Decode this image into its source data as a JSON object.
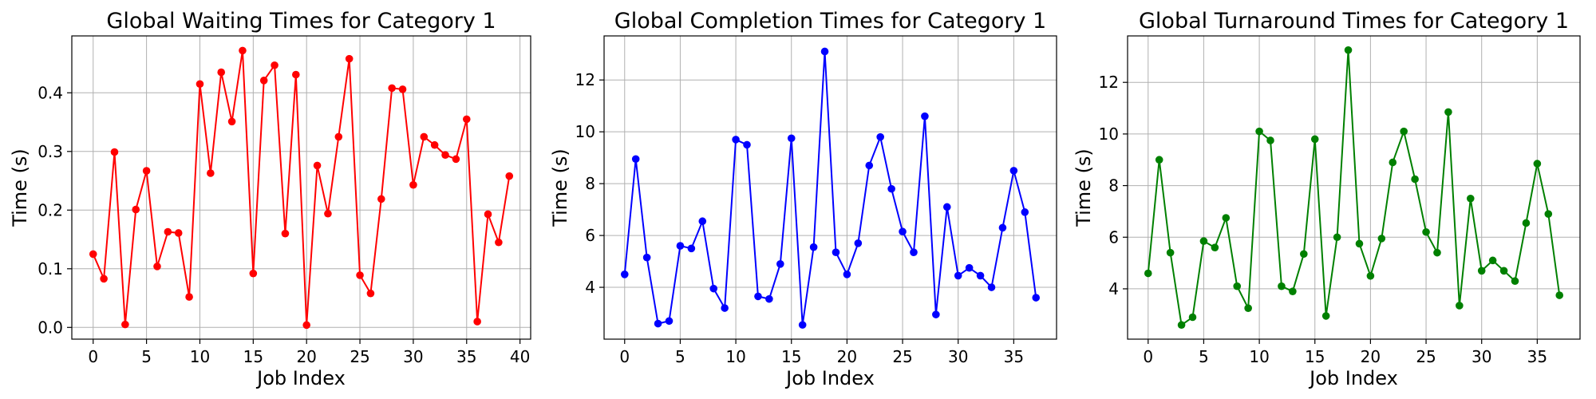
{
  "chart_data": [
    {
      "type": "line",
      "title": "Global Waiting Times for Category 1",
      "xlabel": "Job Index",
      "ylabel": "Time (s)",
      "color": "#ff0000",
      "marker": "circle",
      "grid": true,
      "xlim": [
        -2,
        41
      ],
      "ylim": [
        -0.02,
        0.497
      ],
      "xticks": [
        0,
        5,
        10,
        15,
        20,
        25,
        30,
        35,
        40
      ],
      "yticks": [
        0.0,
        0.1,
        0.2,
        0.3,
        0.4
      ],
      "yticklabels": [
        "0.0",
        "0.1",
        "0.2",
        "0.3",
        "0.4"
      ],
      "series": [
        {
          "values": [
            0.125,
            0.083,
            0.299,
            0.005,
            0.201,
            0.267,
            0.104,
            0.163,
            0.161,
            0.052,
            0.415,
            0.263,
            0.435,
            0.351,
            0.472,
            0.092,
            0.421,
            0.447,
            0.16,
            0.431,
            0.004,
            0.276,
            0.194,
            0.325,
            0.458,
            0.089,
            0.058,
            0.219,
            0.408,
            0.406,
            0.243,
            0.325,
            0.311,
            0.294,
            0.287,
            0.355,
            0.01,
            0.193,
            0.145,
            0.258
          ]
        }
      ]
    },
    {
      "type": "line",
      "title": "Global Completion Times for Category 1",
      "xlabel": "Job Index",
      "ylabel": "Time (s)",
      "color": "#0000ff",
      "marker": "circle",
      "grid": true,
      "xlim": [
        -1.85,
        38.85
      ],
      "ylim": [
        2.0,
        13.7
      ],
      "xticks": [
        0,
        5,
        10,
        15,
        20,
        25,
        30,
        35
      ],
      "yticks": [
        4,
        6,
        8,
        10,
        12
      ],
      "yticklabels": [
        "4",
        "6",
        "8",
        "10",
        "12"
      ],
      "series": [
        {
          "values": [
            4.5,
            8.95,
            5.15,
            2.6,
            2.7,
            5.6,
            5.5,
            6.55,
            3.95,
            3.2,
            9.7,
            9.5,
            3.65,
            3.55,
            4.9,
            9.75,
            2.55,
            5.55,
            13.1,
            5.35,
            4.5,
            5.7,
            8.7,
            9.8,
            7.8,
            6.15,
            5.35,
            10.6,
            2.95,
            7.1,
            4.45,
            4.75,
            4.45,
            4.0,
            6.3,
            8.5,
            6.9,
            3.6
          ]
        }
      ]
    },
    {
      "type": "line",
      "title": "Global Turnaround Times for Category 1",
      "xlabel": "Job Index",
      "ylabel": "Time (s)",
      "color": "#008000",
      "marker": "circle",
      "grid": true,
      "xlim": [
        -1.85,
        38.85
      ],
      "ylim": [
        2.05,
        13.8
      ],
      "xticks": [
        0,
        5,
        10,
        15,
        20,
        25,
        30,
        35
      ],
      "yticks": [
        4,
        6,
        8,
        10,
        12
      ],
      "yticklabels": [
        "4",
        "6",
        "8",
        "10",
        "12"
      ],
      "series": [
        {
          "values": [
            4.6,
            9.0,
            5.4,
            2.6,
            2.9,
            5.85,
            5.6,
            6.75,
            4.1,
            3.25,
            10.1,
            9.75,
            4.1,
            3.9,
            5.35,
            9.8,
            2.95,
            6.0,
            13.25,
            5.75,
            4.5,
            5.95,
            8.9,
            10.1,
            8.25,
            6.2,
            5.4,
            10.85,
            3.35,
            7.5,
            4.7,
            5.1,
            4.7,
            4.3,
            6.55,
            8.85,
            6.9,
            3.75
          ]
        }
      ]
    }
  ]
}
